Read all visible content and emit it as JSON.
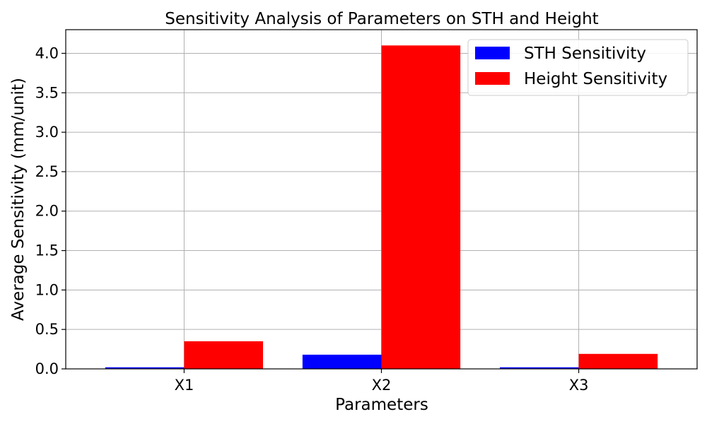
{
  "chart_data": {
    "type": "bar",
    "title": "Sensitivity Analysis of Parameters on STH and Height",
    "xlabel": "Parameters",
    "ylabel": "Average Sensitivity (mm/unit)",
    "categories": [
      "X1",
      "X2",
      "X3"
    ],
    "series": [
      {
        "name": "STH Sensitivity",
        "color": "#0000ff",
        "values": [
          0.02,
          0.18,
          0.02
        ]
      },
      {
        "name": "Height Sensitivity",
        "color": "#ff0000",
        "values": [
          0.35,
          4.1,
          0.19
        ]
      }
    ],
    "ylim": [
      0,
      4.3
    ],
    "yticks": [
      0.0,
      0.5,
      1.0,
      1.5,
      2.0,
      2.5,
      3.0,
      3.5,
      4.0
    ],
    "ytick_labels": [
      "0.0",
      "0.5",
      "1.0",
      "1.5",
      "2.0",
      "2.5",
      "3.0",
      "3.5",
      "4.0"
    ],
    "grid": true,
    "legend_position": "top-right"
  }
}
